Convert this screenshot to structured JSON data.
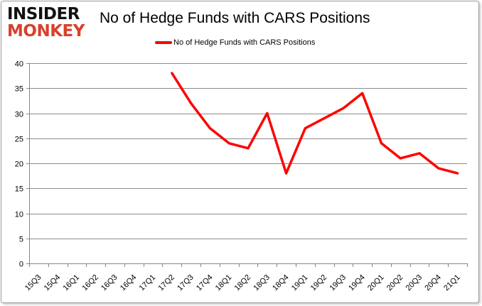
{
  "logo": {
    "line1": "INSIDER",
    "line2": "MONKEY"
  },
  "colors": {
    "series": "#ff0000",
    "grid": "#8c8c8c",
    "logo_accent": "#d9402b"
  },
  "chart_data": {
    "type": "line",
    "title": "No of Hedge Funds with CARS Positions",
    "xlabel": "",
    "ylabel": "",
    "ylim": [
      0,
      40
    ],
    "yticks": [
      0,
      5,
      10,
      15,
      20,
      25,
      30,
      35,
      40
    ],
    "grid": true,
    "legend_position": "top",
    "categories": [
      "15Q3",
      "15Q4",
      "16Q1",
      "16Q2",
      "16Q3",
      "16Q4",
      "17Q1",
      "17Q2",
      "17Q3",
      "17Q4",
      "18Q1",
      "18Q2",
      "18Q3",
      "18Q4",
      "19Q1",
      "19Q2",
      "19Q3",
      "19Q4",
      "20Q1",
      "20Q2",
      "20Q3",
      "20Q4",
      "21Q1"
    ],
    "series": [
      {
        "name": "No of Hedge Funds with CARS Positions",
        "values": [
          null,
          null,
          null,
          null,
          null,
          null,
          null,
          38,
          32,
          27,
          24,
          23,
          30,
          18,
          27,
          29,
          31,
          34,
          24,
          21,
          22,
          19,
          18
        ]
      }
    ]
  }
}
